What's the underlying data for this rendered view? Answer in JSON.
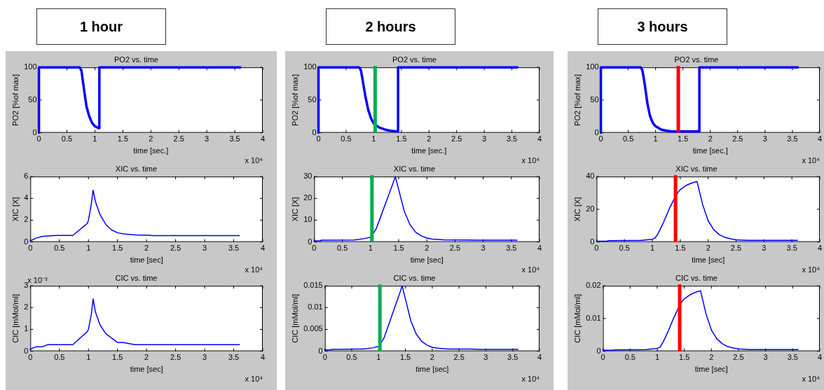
{
  "chart_data": [
    {
      "type": "other",
      "title": "1 hour"
    },
    {
      "type": "line",
      "title": "PO2 vs. time",
      "xlabel": "time [sec.]",
      "ylabel": "PO2 [%of max]",
      "annotations": [
        "x 10⁴"
      ],
      "xlim": [
        0,
        4
      ],
      "xticks": [
        0,
        0.5,
        1,
        1.5,
        2,
        2.5,
        3,
        3.5,
        4
      ],
      "ylim": [
        0,
        100
      ],
      "yticks": [
        0,
        50,
        100
      ],
      "x": [
        0,
        0,
        0.73,
        0.76,
        0.8,
        0.85,
        0.9,
        0.95,
        1,
        1.07,
        1.08,
        1.08,
        3.6
      ],
      "series": [
        {
          "color": "#0000ff",
          "values": [
            0,
            100,
            100,
            95,
            70,
            40,
            25,
            15,
            10,
            7,
            7,
            100,
            100
          ]
        }
      ]
    },
    {
      "type": "line",
      "title": "XIC vs. time",
      "xlabel": "time [sec]",
      "ylabel": "XIC [X]",
      "annotations": [
        "x 10⁴"
      ],
      "xlim": [
        0,
        4
      ],
      "xticks": [
        0,
        0.5,
        1,
        1.5,
        2,
        2.5,
        3,
        3.5,
        4
      ],
      "ylim": [
        0,
        6
      ],
      "yticks": [
        0,
        2,
        4,
        6
      ],
      "x": [
        0,
        0.1,
        0.2,
        0.3,
        0.45,
        0.73,
        0.98,
        1,
        1.05,
        1.08,
        1.12,
        1.2,
        1.3,
        1.4,
        1.5,
        1.6,
        1.8,
        2.05,
        2.1,
        3.6
      ],
      "series": [
        {
          "color": "#0000ff",
          "values": [
            0.1,
            0.35,
            0.5,
            0.55,
            0.6,
            0.6,
            1.7,
            2.0,
            3.5,
            4.75,
            3.7,
            2.5,
            1.6,
            1.1,
            0.85,
            0.75,
            0.65,
            0.62,
            0.58,
            0.58
          ]
        }
      ]
    },
    {
      "type": "line",
      "title": "CIC vs. time",
      "xlabel": "time [sec]",
      "ylabel": "CIC [mMol/ml]",
      "annotations": [
        "x 10⁴",
        "x 10⁻³"
      ],
      "xlim": [
        0,
        4
      ],
      "xticks": [
        0,
        0.5,
        1,
        1.5,
        2,
        2.5,
        3,
        3.5,
        4
      ],
      "ylim": [
        0,
        3
      ],
      "yticks": [
        0,
        1,
        2,
        3
      ],
      "x": [
        0,
        0.1,
        0.2,
        0.3,
        0.45,
        0.73,
        0.98,
        1,
        1.05,
        1.08,
        1.12,
        1.2,
        1.3,
        1.4,
        1.5,
        1.6,
        1.8,
        2.05,
        2.1,
        3.6
      ],
      "series": [
        {
          "color": "#0000ff",
          "values": [
            0.1,
            0.2,
            0.2,
            0.3,
            0.3,
            0.3,
            0.9,
            1,
            1.7,
            2.4,
            1.8,
            1.2,
            0.8,
            0.6,
            0.4,
            0.4,
            0.3,
            0.3,
            0.3,
            0.3
          ]
        }
      ]
    },
    {
      "type": "other",
      "title": "2 hours"
    },
    {
      "type": "line",
      "title": "PO2 vs. time",
      "xlabel": "time [sec.]",
      "ylabel": "PO2 [%of max]",
      "annotations": [
        "x 10⁴"
      ],
      "xlim": [
        0,
        4
      ],
      "xticks": [
        0,
        0.5,
        1,
        1.5,
        2,
        2.5,
        3,
        3.5,
        4
      ],
      "ylim": [
        0,
        100
      ],
      "yticks": [
        0,
        50,
        100
      ],
      "ref_lines": [
        {
          "axis": "x",
          "value": 1.025,
          "color": "#00b050"
        }
      ],
      "x": [
        0,
        0,
        0.74,
        0.77,
        0.8,
        0.85,
        0.9,
        0.95,
        1,
        1.1,
        1.2,
        1.3,
        1.43,
        1.44,
        1.44,
        3.6
      ],
      "series": [
        {
          "color": "#0000ff",
          "values": [
            0,
            100,
            100,
            95,
            80,
            55,
            35,
            22,
            14,
            8,
            5,
            3,
            2,
            2,
            100,
            100
          ]
        }
      ]
    },
    {
      "type": "line",
      "title": "XIC vs. time",
      "xlabel": "time [sec]",
      "ylabel": "XIC [X]",
      "annotations": [
        "x 10⁴"
      ],
      "xlim": [
        0,
        4
      ],
      "xticks": [
        0,
        0.5,
        1,
        1.5,
        2,
        2.5,
        3,
        3.5,
        4
      ],
      "ylim": [
        0,
        30
      ],
      "yticks": [
        0,
        10,
        20,
        30
      ],
      "ref_lines": [
        {
          "axis": "x",
          "value": 1.025,
          "color": "#00b050"
        }
      ],
      "x": [
        0,
        0.12,
        0.12,
        0.7,
        0.8,
        0.9,
        1,
        1.1,
        1.2,
        1.3,
        1.4,
        1.44,
        1.5,
        1.6,
        1.7,
        1.8,
        1.9,
        2,
        2.1,
        2.3,
        2.7,
        2.9,
        3.6
      ],
      "series": [
        {
          "color": "#0000ff",
          "values": [
            0.5,
            0.5,
            0.8,
            0.9,
            1.2,
            1.6,
            2.2,
            6,
            13,
            20,
            27,
            30,
            24,
            14,
            8,
            4.5,
            2.8,
            1.8,
            1.3,
            1,
            0.9,
            0.8,
            0.8
          ]
        }
      ]
    },
    {
      "type": "line",
      "title": "CIC vs. time",
      "xlabel": "time [sec]",
      "ylabel": "CIC [mMol/ml]",
      "annotations": [
        "x 10⁴"
      ],
      "xlim": [
        0,
        4
      ],
      "xticks": [
        0,
        0.5,
        1,
        1.5,
        2,
        2.5,
        3,
        3.5,
        4
      ],
      "ylim": [
        0,
        0.015
      ],
      "yticks": [
        0,
        0.005,
        0.01,
        0.015
      ],
      "ref_lines": [
        {
          "axis": "x",
          "value": 1.025,
          "color": "#00b050"
        }
      ],
      "x": [
        0,
        0.12,
        0.12,
        0.7,
        0.8,
        0.9,
        1,
        1.1,
        1.2,
        1.3,
        1.4,
        1.44,
        1.5,
        1.6,
        1.7,
        1.8,
        1.9,
        2,
        2.1,
        2.3,
        2.7,
        2.9,
        3.6
      ],
      "series": [
        {
          "color": "#0000ff",
          "values": [
            0.0003,
            0.0003,
            0.0004,
            0.0005,
            0.0006,
            0.0008,
            0.0011,
            0.003,
            0.0065,
            0.01,
            0.0135,
            0.015,
            0.012,
            0.007,
            0.004,
            0.0023,
            0.0014,
            0.0009,
            0.0007,
            0.0005,
            0.0005,
            0.0004,
            0.0004
          ]
        }
      ]
    },
    {
      "type": "other",
      "title": "3 hours"
    },
    {
      "type": "line",
      "title": "PO2 vs. time",
      "xlabel": "time [sec.]",
      "ylabel": "PO2 [%of max]",
      "annotations": [
        "x 10⁴"
      ],
      "xlim": [
        0,
        4
      ],
      "xticks": [
        0,
        0.5,
        1,
        1.5,
        2,
        2.5,
        3,
        3.5,
        4
      ],
      "ylim": [
        0,
        100
      ],
      "yticks": [
        0,
        50,
        100
      ],
      "ref_lines": [
        {
          "axis": "x",
          "value": 1.415,
          "color": "#ff0000"
        }
      ],
      "x": [
        0,
        0,
        0.73,
        0.76,
        0.8,
        0.85,
        0.9,
        0.95,
        1,
        1.1,
        1.2,
        1.3,
        1.4,
        1.8,
        1.8,
        3.6
      ],
      "series": [
        {
          "color": "#0000ff",
          "values": [
            0,
            100,
            100,
            95,
            75,
            45,
            25,
            15,
            10,
            5,
            3,
            2,
            2,
            2,
            100,
            100
          ]
        }
      ]
    },
    {
      "type": "line",
      "title": "XIC vs. time",
      "xlabel": "time [sec]",
      "ylabel": "XIC [X]",
      "annotations": [
        "x 10⁴"
      ],
      "xlim": [
        0,
        4
      ],
      "xticks": [
        0,
        0.5,
        1,
        1.5,
        2,
        2.5,
        3,
        3.5,
        4
      ],
      "ylim": [
        0,
        40
      ],
      "yticks": [
        0,
        20,
        40
      ],
      "ref_lines": [
        {
          "axis": "x",
          "value": 1.415,
          "color": "#ff0000"
        }
      ],
      "x": [
        0,
        0.2,
        0.2,
        0.8,
        1,
        1.05,
        1.1,
        1.2,
        1.3,
        1.4,
        1.45,
        1.5,
        1.6,
        1.7,
        1.8,
        1.85,
        1.9,
        2,
        2.1,
        2.2,
        2.3,
        2.4,
        2.5,
        2.7,
        3.6
      ],
      "series": [
        {
          "color": "#0000ff",
          "values": [
            0.5,
            0.5,
            0.8,
            1,
            1.7,
            2.5,
            5,
            12,
            20,
            27,
            30,
            32,
            34.5,
            36,
            37,
            30,
            23,
            13,
            7.5,
            4.5,
            2.8,
            2,
            1.3,
            1,
            1
          ]
        }
      ]
    },
    {
      "type": "line",
      "title": "CIC vs. time",
      "xlabel": "time [sec]",
      "ylabel": "CIC [mMol/ml]",
      "annotations": [
        "x 10⁴"
      ],
      "xlim": [
        0,
        4
      ],
      "xticks": [
        0,
        0.5,
        1,
        1.5,
        2,
        2.5,
        3,
        3.5,
        4
      ],
      "ylim": [
        0,
        0.02
      ],
      "yticks": [
        0,
        0.01,
        0.02
      ],
      "ref_lines": [
        {
          "axis": "x",
          "value": 1.415,
          "color": "#ff0000"
        }
      ],
      "x": [
        0,
        0.2,
        0.2,
        0.8,
        1,
        1.05,
        1.1,
        1.2,
        1.3,
        1.4,
        1.45,
        1.5,
        1.6,
        1.7,
        1.8,
        1.85,
        1.9,
        2,
        2.1,
        2.2,
        2.3,
        2.4,
        2.5,
        2.7,
        3.6
      ],
      "series": [
        {
          "color": "#0000ff",
          "values": [
            0.0003,
            0.0003,
            0.0004,
            0.0005,
            0.0009,
            0.0012,
            0.0025,
            0.006,
            0.01,
            0.0135,
            0.015,
            0.016,
            0.0172,
            0.018,
            0.0185,
            0.015,
            0.0115,
            0.0065,
            0.0038,
            0.0023,
            0.0014,
            0.001,
            0.0007,
            0.0005,
            0.0005
          ]
        }
      ]
    }
  ]
}
